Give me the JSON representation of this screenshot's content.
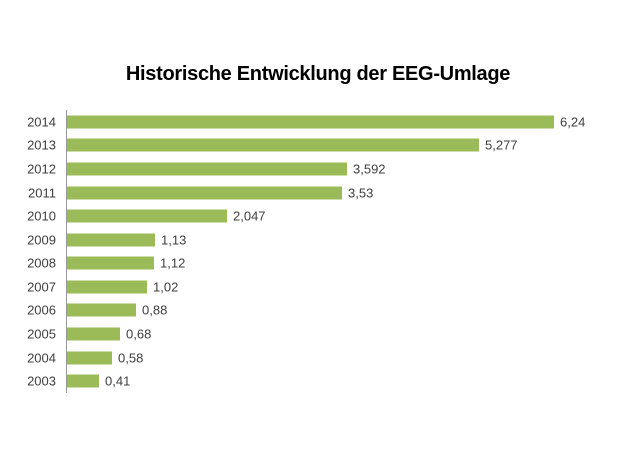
{
  "chart_data": {
    "type": "bar",
    "orientation": "horizontal",
    "title": "Historische Entwicklung der EEG-Umlage",
    "categories": [
      "2014",
      "2013",
      "2012",
      "2011",
      "2010",
      "2009",
      "2008",
      "2007",
      "2006",
      "2005",
      "2004",
      "2003"
    ],
    "values": [
      6.24,
      5.277,
      3.592,
      3.53,
      2.047,
      1.13,
      1.12,
      1.02,
      0.88,
      0.68,
      0.58,
      0.41
    ],
    "value_labels": [
      "6,24",
      "5,277",
      "3,592",
      "3,53",
      "2,047",
      "1,13",
      "1,12",
      "1,02",
      "0,88",
      "0,68",
      "0,58",
      "0,41"
    ],
    "xlabel": "",
    "ylabel": "",
    "xlim": [
      0,
      6.5
    ],
    "grid": false,
    "legend": null,
    "value_labels_shown": true,
    "colors": {
      "bar": "#9bbb59",
      "axis_line": "#999999",
      "category_label": "#3f3f3f",
      "value_label": "#3f3f3f",
      "title": "#000000",
      "background": "#ffffff"
    }
  }
}
